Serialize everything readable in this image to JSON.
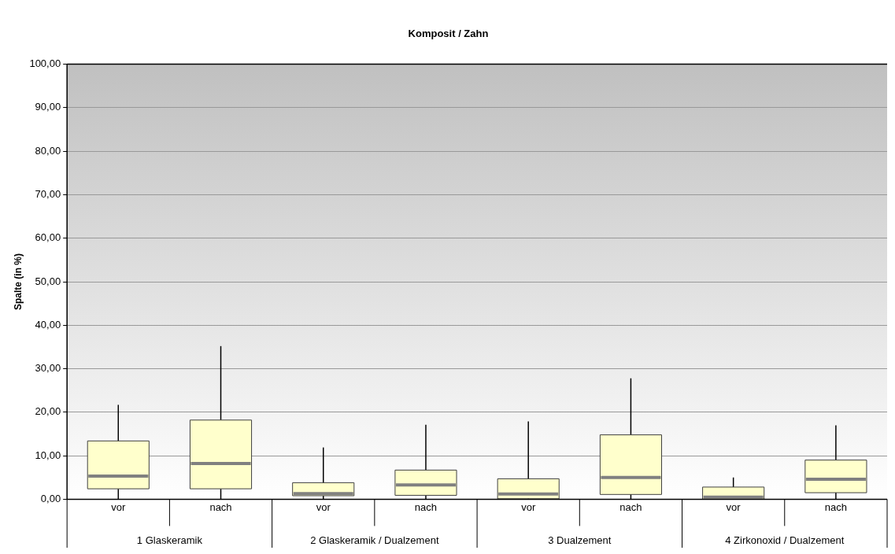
{
  "chart_data": {
    "type": "box",
    "title": "Komposit / Zahn",
    "ylabel": "Spalte (in %)",
    "categories": [
      "vor",
      "nach",
      "vor",
      "nach",
      "vor",
      "nach",
      "vor",
      "nach"
    ],
    "series": [
      {
        "color": "#ffffcc",
        "boxes": [
          {
            "low": 0,
            "q1": 2.4,
            "median": 5.3,
            "q3": 13.4,
            "high": 21.7
          },
          {
            "low": 0,
            "q1": 2.4,
            "median": 8.2,
            "q3": 18.2,
            "high": 35.2
          },
          {
            "low": 0,
            "q1": 0.8,
            "median": 1.3,
            "q3": 3.8,
            "high": 11.9
          },
          {
            "low": 0,
            "q1": 0.9,
            "median": 3.3,
            "q3": 6.7,
            "high": 17.1
          },
          {
            "low": 0,
            "q1": 0.1,
            "median": 1.2,
            "q3": 4.7,
            "high": 17.9
          },
          {
            "low": 0,
            "q1": 1.1,
            "median": 5.0,
            "q3": 14.8,
            "high": 27.8
          },
          {
            "low": 0,
            "q1": 0,
            "median": 0.5,
            "q3": 2.8,
            "high": 5.0
          },
          {
            "low": 0,
            "q1": 1.5,
            "median": 4.6,
            "q3": 9.0,
            "high": 17.0
          }
        ]
      }
    ],
    "annotations": [
      "1 Glaskeramik",
      "2 Glaskeramik / Dualzement",
      "3 Dualzement",
      "4 Zirkonoxid / Dualzement"
    ],
    "ylim": [
      0,
      100
    ],
    "yticks": [
      {
        "value": 0,
        "label": "0,00"
      },
      {
        "value": 10,
        "label": "10,00"
      },
      {
        "value": 20,
        "label": "20,00"
      },
      {
        "value": 30,
        "label": "30,00"
      },
      {
        "value": 40,
        "label": "40,00"
      },
      {
        "value": 50,
        "label": "50,00"
      },
      {
        "value": 60,
        "label": "60,00"
      },
      {
        "value": 70,
        "label": "70,00"
      },
      {
        "value": 80,
        "label": "80,00"
      },
      {
        "value": 90,
        "label": "90,00"
      },
      {
        "value": 100,
        "label": "100,00"
      }
    ],
    "grid": "y",
    "legend": false
  }
}
